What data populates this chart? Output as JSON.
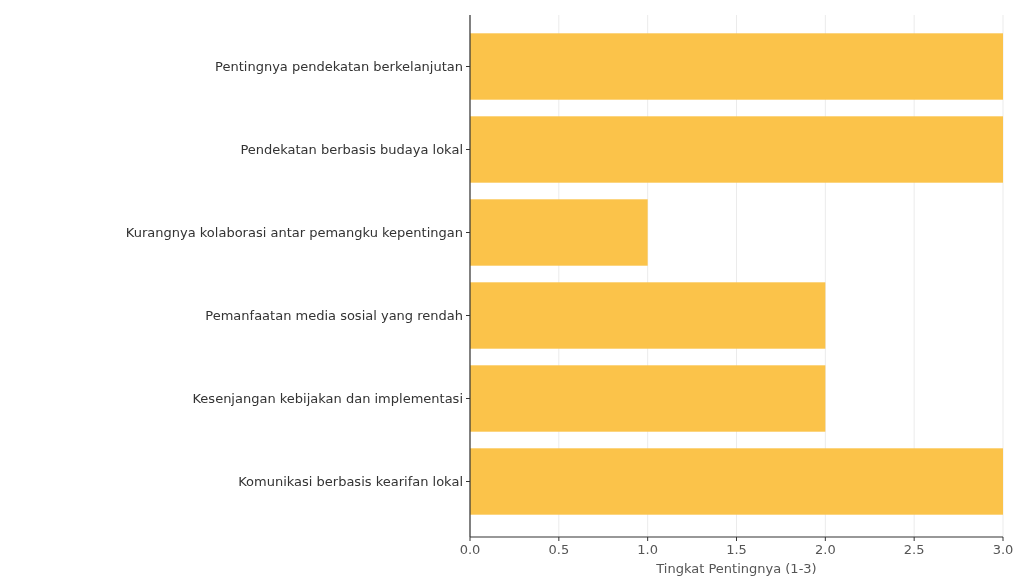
{
  "chart_data": {
    "type": "bar",
    "orientation": "horizontal",
    "xlabel": "Tingkat Pentingnya (1-3)",
    "categories": [
      "Pentingnya pendekatan berkelanjutan",
      "Pendekatan berbasis budaya lokal",
      "Kurangnya kolaborasi antar pemangku kepentingan",
      "Pemanfaatan media sosial yang rendah",
      "Kesenjangan kebijakan dan implementasi",
      "Komunikasi berbasis kearifan lokal"
    ],
    "values": [
      3,
      3,
      1,
      2,
      2,
      3
    ],
    "color": "#fbc34a",
    "xlim": [
      0,
      3
    ],
    "xticks": [
      {
        "value": 0,
        "label": "0.0"
      },
      {
        "value": 0.5,
        "label": "0.5"
      },
      {
        "value": 1,
        "label": "1.0"
      },
      {
        "value": 1.5,
        "label": "1.5"
      },
      {
        "value": 2,
        "label": "2.0"
      },
      {
        "value": 2.5,
        "label": "2.5"
      },
      {
        "value": 3,
        "label": "3.0"
      }
    ],
    "grid": "x"
  }
}
